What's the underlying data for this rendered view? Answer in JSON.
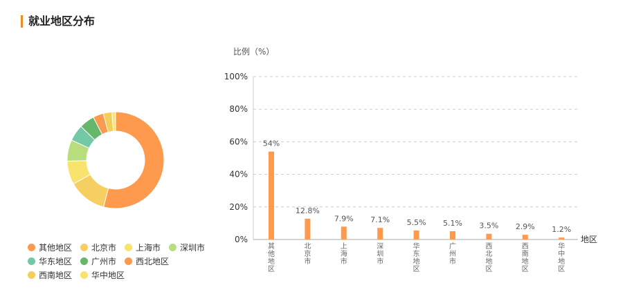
{
  "section": {
    "title": "就业地区分布"
  },
  "colors": {
    "accent": "#f08a24",
    "slices": [
      "#fd9a4d",
      "#f6cf62",
      "#f8e36c",
      "#b7dd7c",
      "#73c9a6",
      "#66b66c",
      "#f99a4f",
      "#f3cf5a",
      "#f8e36e"
    ],
    "bar": "#fd9a4d"
  },
  "chart_data": [
    {
      "type": "pie",
      "donut": true,
      "categories": [
        "其他地区",
        "北京市",
        "上海市",
        "深圳市",
        "华东地区",
        "广州市",
        "西北地区",
        "西南地区",
        "华中地区"
      ],
      "values": [
        54,
        12.8,
        7.9,
        7.1,
        5.5,
        5.1,
        3.5,
        2.9,
        1.2
      ],
      "legend": "bottom-left"
    },
    {
      "type": "bar",
      "ylabel": "比例（%）",
      "xlabel": "地区",
      "categories": [
        "其他地区",
        "北京市",
        "上海市",
        "深圳市",
        "华东地区",
        "广州市",
        "西北地区",
        "西南地区",
        "华中地区"
      ],
      "values": [
        54,
        12.8,
        7.9,
        7.1,
        5.5,
        5.1,
        3.5,
        2.9,
        1.2
      ],
      "data_labels": [
        "54%",
        "12.8%",
        "7.9%",
        "7.1%",
        "5.5%",
        "5.1%",
        "3.5%",
        "2.9%",
        "1.2%"
      ],
      "ylim": [
        0,
        100
      ],
      "yticks": [
        "0%",
        "20%",
        "40%",
        "60%",
        "80%",
        "100%"
      ],
      "grid": true
    }
  ]
}
